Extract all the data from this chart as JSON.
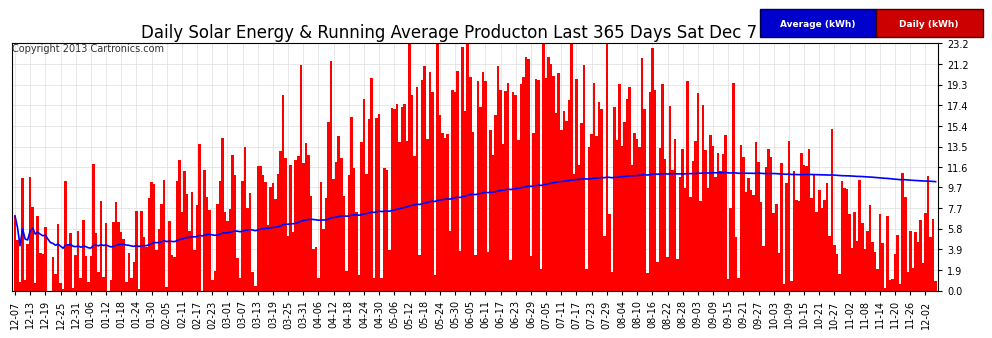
{
  "title": "Daily Solar Energy & Running Average Producton Last 365 Days Sat Dec 7 07:14",
  "copyright_text": "Copyright 2013 Cartronics.com",
  "legend_labels": [
    "Average (kWh)",
    "Daily (kWh)"
  ],
  "legend_colors_bg": [
    "#0000cc",
    "#cc0000"
  ],
  "bar_color": "#ff0000",
  "line_color": "#0000ff",
  "background_color": "#ffffff",
  "plot_bg_color": "#ffffff",
  "grid_color": "#dddddd",
  "yticks": [
    0.0,
    1.9,
    3.9,
    5.8,
    7.7,
    9.7,
    11.6,
    13.5,
    15.4,
    17.4,
    19.3,
    21.2,
    23.2
  ],
  "ylim": [
    0.0,
    23.2
  ],
  "title_fontsize": 12,
  "tick_fontsize": 7,
  "copyright_fontsize": 7,
  "x_tick_dates": [
    "12-07",
    "12-13",
    "12-19",
    "12-25",
    "12-31",
    "01-06",
    "01-12",
    "01-18",
    "01-24",
    "01-30",
    "02-05",
    "02-11",
    "02-17",
    "02-23",
    "03-01",
    "03-07",
    "03-13",
    "03-19",
    "03-25",
    "03-31",
    "04-06",
    "04-12",
    "04-18",
    "04-24",
    "04-30",
    "05-06",
    "05-12",
    "05-18",
    "05-24",
    "05-30",
    "06-05",
    "06-11",
    "06-17",
    "06-23",
    "06-29",
    "07-05",
    "07-11",
    "07-17",
    "07-23",
    "07-29",
    "08-04",
    "08-10",
    "08-16",
    "08-22",
    "08-28",
    "09-03",
    "09-09",
    "09-15",
    "09-21",
    "09-27",
    "10-03",
    "10-09",
    "10-15",
    "10-21",
    "10-27",
    "11-02",
    "11-08",
    "11-14",
    "11-20",
    "11-26",
    "12-02"
  ]
}
